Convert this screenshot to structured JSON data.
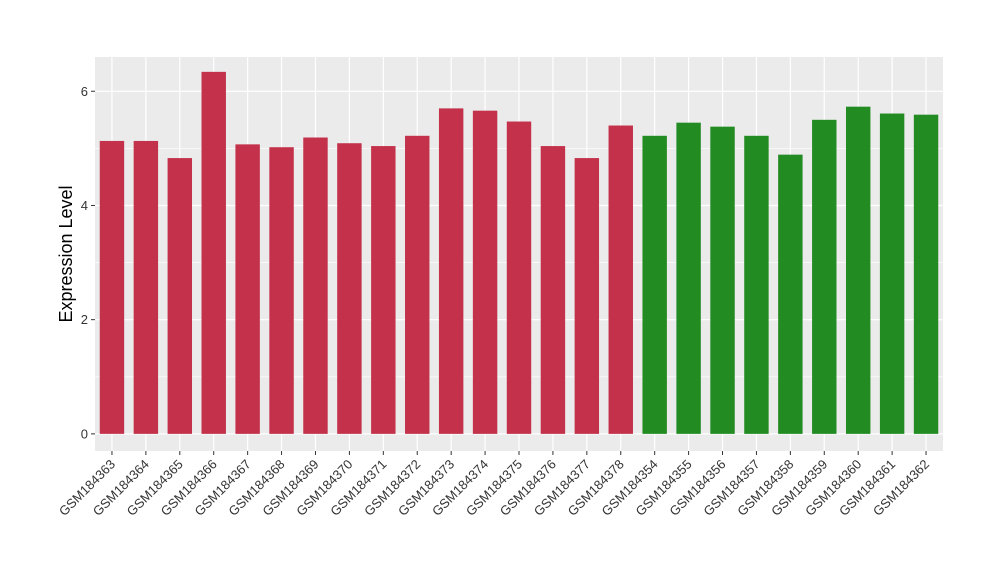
{
  "chart_data": {
    "type": "bar",
    "title": "",
    "xlabel": "",
    "ylabel": "Expression Level",
    "ylim": [
      -0.3,
      6.6
    ],
    "yticks": [
      0,
      2,
      4,
      6
    ],
    "grid": true,
    "legend": "none",
    "categories": [
      "GSM184363",
      "GSM184364",
      "GSM184365",
      "GSM184366",
      "GSM184367",
      "GSM184368",
      "GSM184369",
      "GSM184370",
      "GSM184371",
      "GSM184372",
      "GSM184373",
      "GSM184374",
      "GSM184375",
      "GSM184376",
      "GSM184377",
      "GSM184378",
      "GSM184354",
      "GSM184355",
      "GSM184356",
      "GSM184357",
      "GSM184358",
      "GSM184359",
      "GSM184360",
      "GSM184361",
      "GSM184362"
    ],
    "values": [
      5.13,
      5.13,
      4.83,
      6.34,
      5.07,
      5.02,
      5.19,
      5.09,
      5.04,
      5.22,
      5.7,
      5.66,
      5.47,
      5.04,
      4.83,
      5.4,
      5.22,
      5.45,
      5.38,
      5.22,
      4.89,
      5.5,
      5.73,
      5.61,
      5.59
    ],
    "groups": [
      "red",
      "red",
      "red",
      "red",
      "red",
      "red",
      "red",
      "red",
      "red",
      "red",
      "red",
      "red",
      "red",
      "red",
      "red",
      "red",
      "green",
      "green",
      "green",
      "green",
      "green",
      "green",
      "green",
      "green",
      "green"
    ],
    "colors": {
      "red": "#C3314A",
      "green": "#228B22",
      "panel": "#EBEBEB",
      "grid": "#FFFFFF"
    }
  }
}
